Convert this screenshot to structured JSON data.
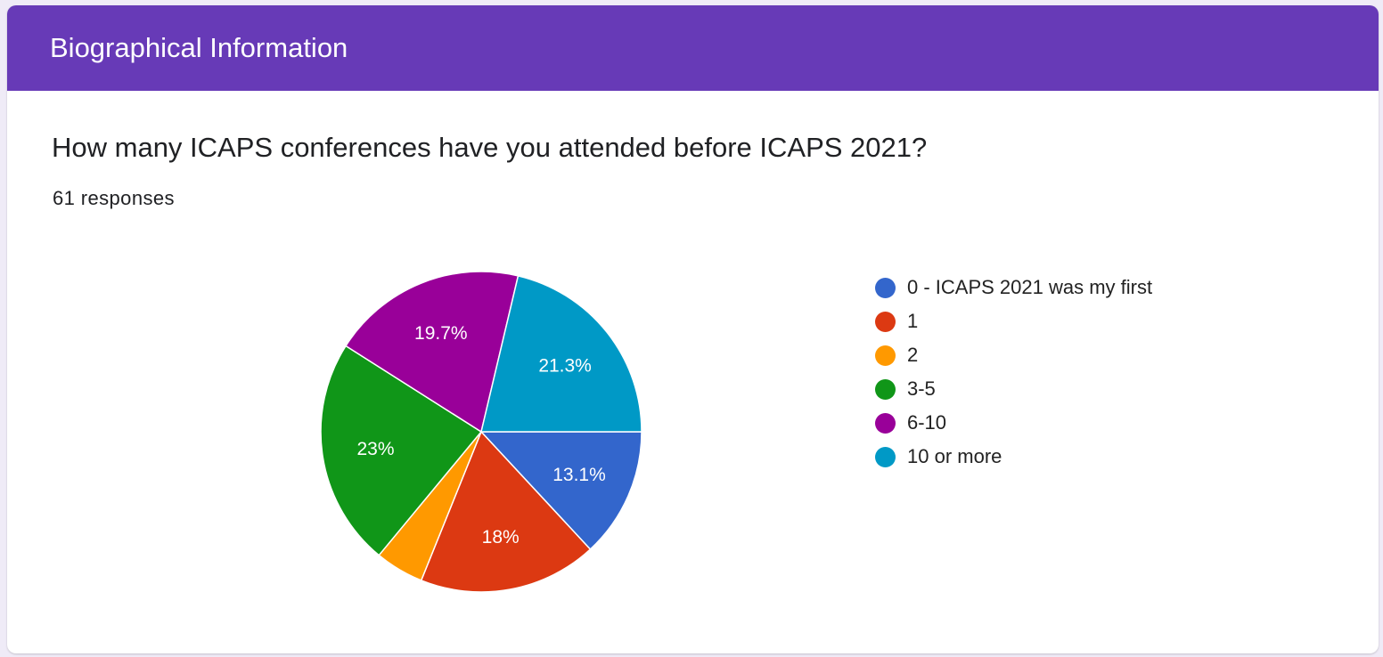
{
  "section": {
    "title": "Biographical Information"
  },
  "question": {
    "title": "How many ICAPS conferences have you attended before ICAPS 2021?",
    "responses": "61 responses"
  },
  "colors": {
    "header": "#673ab7",
    "background": "#efebf7"
  },
  "chart_data": {
    "type": "pie",
    "start_angle_deg": 90,
    "direction": "clockwise",
    "legend_position": "right",
    "slices": [
      {
        "label": "0 - ICAPS 2021 was my first",
        "value": 13.1,
        "display": "13.1%",
        "color": "#3366cc"
      },
      {
        "label": "1",
        "value": 18.0,
        "display": "18%",
        "color": "#dc3912"
      },
      {
        "label": "2",
        "value": 4.9,
        "display": "",
        "color": "#ff9900"
      },
      {
        "label": "3-5",
        "value": 23.0,
        "display": "23%",
        "color": "#109618"
      },
      {
        "label": "6-10",
        "value": 19.7,
        "display": "19.7%",
        "color": "#990099"
      },
      {
        "label": "10 or more",
        "value": 21.3,
        "display": "21.3%",
        "color": "#0099c6"
      }
    ]
  }
}
